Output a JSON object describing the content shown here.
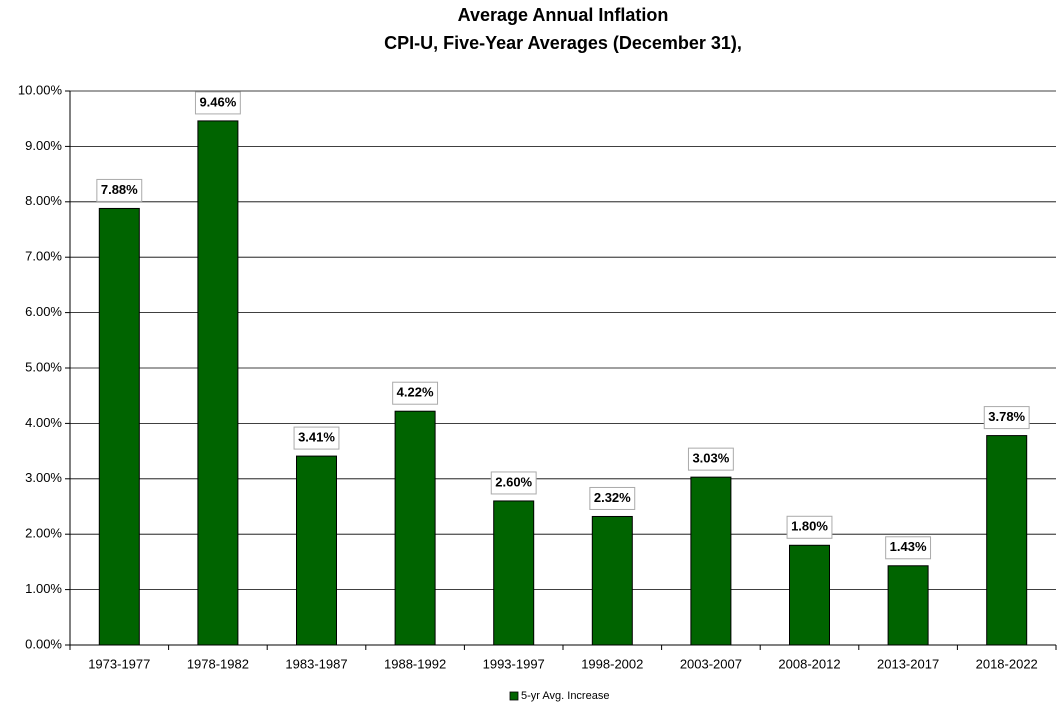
{
  "chart_data": {
    "type": "bar",
    "title": "Average Annual Inflation",
    "subtitle": "CPI-U, Five-Year Averages (December 31),",
    "categories": [
      "1973-1977",
      "1978-1982",
      "1983-1987",
      "1988-1992",
      "1993-1997",
      "1998-2002",
      "2003-2007",
      "2008-2012",
      "2013-2017",
      "2018-2022"
    ],
    "series": [
      {
        "name": "5-yr Avg. Increase",
        "color": "#006400",
        "values": [
          7.88,
          9.46,
          3.41,
          4.22,
          2.6,
          2.32,
          3.03,
          1.8,
          1.43,
          3.78
        ],
        "value_labels": [
          "7.88%",
          "9.46%",
          "3.41%",
          "4.22%",
          "2.60%",
          "2.32%",
          "3.03%",
          "1.80%",
          "1.43%",
          "3.78%"
        ]
      }
    ],
    "ylim": [
      0,
      10
    ],
    "yticks": [
      {
        "value": 0,
        "label": "0.00%"
      },
      {
        "value": 1,
        "label": "1.00%"
      },
      {
        "value": 2,
        "label": "2.00%"
      },
      {
        "value": 3,
        "label": "3.00%"
      },
      {
        "value": 4,
        "label": "4.00%"
      },
      {
        "value": 5,
        "label": "5.00%"
      },
      {
        "value": 6,
        "label": "6.00%"
      },
      {
        "value": 7,
        "label": "7.00%"
      },
      {
        "value": 8,
        "label": "8.00%"
      },
      {
        "value": 9,
        "label": "9.00%"
      },
      {
        "value": 10,
        "label": "10.00%"
      }
    ],
    "grid": true,
    "legend": "bottom"
  }
}
